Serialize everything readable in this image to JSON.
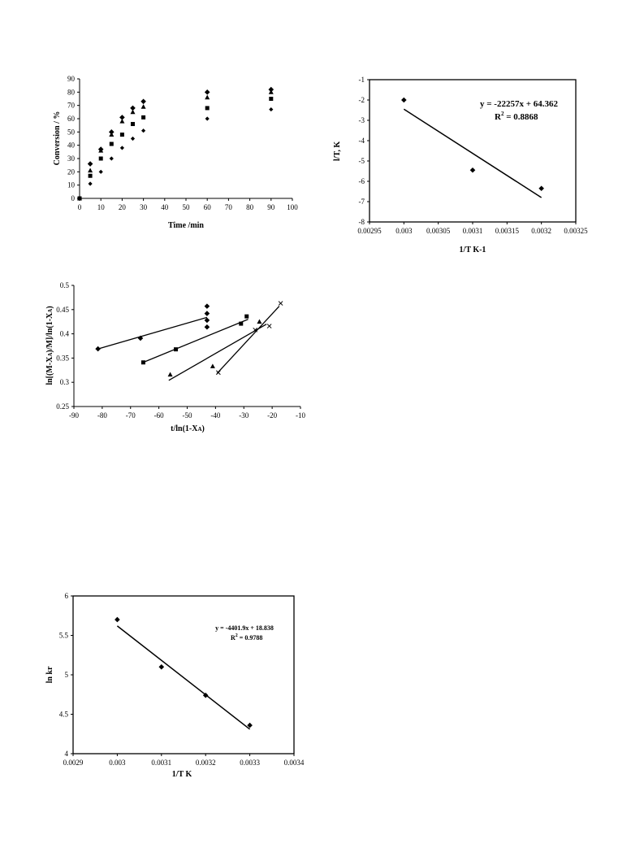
{
  "chart_data": [
    {
      "type": "scatter",
      "xlabel": "Time /min",
      "ylabel": "Conversion / %",
      "xlim": [
        0,
        100
      ],
      "ylim": [
        0,
        90
      ],
      "x_ticks": [
        "0",
        "10",
        "20",
        "30",
        "40",
        "50",
        "60",
        "70",
        "80",
        "90",
        "100"
      ],
      "y_ticks": [
        "0",
        "10",
        "20",
        "30",
        "40",
        "50",
        "60",
        "70",
        "80",
        "90"
      ],
      "grid": false,
      "series": [
        {
          "marker": "diamond-small",
          "x": [
            0,
            5,
            10,
            15,
            20,
            25,
            30,
            60,
            90
          ],
          "y": [
            0,
            11,
            20,
            30,
            38,
            45,
            51,
            60,
            67
          ]
        },
        {
          "marker": "square",
          "x": [
            0,
            5,
            10,
            15,
            20,
            25,
            30,
            60,
            90
          ],
          "y": [
            0,
            17,
            30,
            41,
            48,
            56,
            61,
            68,
            75
          ]
        },
        {
          "marker": "triangle",
          "x": [
            0,
            5,
            10,
            15,
            20,
            25,
            30,
            60,
            90
          ],
          "y": [
            0,
            21,
            36,
            48,
            58,
            65,
            69,
            76,
            80
          ]
        },
        {
          "marker": "diamond",
          "x": [
            0,
            5,
            10,
            15,
            20,
            25,
            30,
            60,
            90
          ],
          "y": [
            0,
            26,
            37,
            50,
            61,
            68,
            73,
            80,
            82
          ]
        }
      ]
    },
    {
      "type": "scatter",
      "xlabel": "1/T K-1",
      "ylabel": "l/T, K",
      "xlim": [
        0.00295,
        0.00325
      ],
      "ylim": [
        -8,
        -1
      ],
      "x_ticks": [
        "0.00295",
        "0.003",
        "0.00305",
        "0.0031",
        "0.00315",
        "0.0032",
        "0.00325"
      ],
      "y_ticks": [
        "-1",
        "-2",
        "-3",
        "-4",
        "-5",
        "-6",
        "-7",
        "-8"
      ],
      "grid": false,
      "series": [
        {
          "marker": "diamond",
          "x": [
            0.003,
            0.0031,
            0.0032
          ],
          "y": [
            -2.0,
            -5.45,
            -6.35
          ]
        }
      ],
      "trendline": {
        "x": [
          0.003,
          0.0032
        ],
        "y": [
          -2.45,
          -6.8
        ]
      },
      "equation": "y = -22257x + 64.362",
      "r2_label": "R",
      "r2_value": " = 0.8868"
    },
    {
      "type": "scatter",
      "xlabel": "t/ln(1-X",
      "xlabel_sub": "A",
      "xlabel_end": ")",
      "ylabel": "ln[(M-X",
      "ylabel_sub1": "A",
      "ylabel_mid": ")/M]/ln(1-X",
      "ylabel_sub2": "A",
      "ylabel_end": ")",
      "xlim": [
        -90,
        -10
      ],
      "ylim": [
        0.25,
        0.5
      ],
      "x_ticks": [
        "-90",
        "-80",
        "-70",
        "-60",
        "-50",
        "-40",
        "-30",
        "-20",
        "-10"
      ],
      "y_ticks": [
        "0.25",
        "0.3",
        "0.35",
        "0.4",
        "0.45",
        "0.5"
      ],
      "grid": false,
      "series": [
        {
          "marker": "diamond",
          "x": [
            -81.5,
            -66.5,
            -43,
            -43,
            -43,
            -43
          ],
          "y": [
            0.369,
            0.391,
            0.414,
            0.428,
            0.442,
            0.457
          ],
          "trendline": {
            "x": [
              -82,
              -43
            ],
            "y": [
              0.368,
              0.434
            ]
          }
        },
        {
          "marker": "square",
          "x": [
            -65.5,
            -54,
            -31,
            -29
          ],
          "y": [
            0.341,
            0.368,
            0.421,
            0.436
          ],
          "trendline": {
            "x": [
              -66,
              -28.5
            ],
            "y": [
              0.34,
              0.43
            ]
          }
        },
        {
          "marker": "triangle",
          "x": [
            -56,
            -41,
            -24.5
          ],
          "y": [
            0.316,
            0.333,
            0.425
          ],
          "trendline": {
            "x": [
              -56.5,
              -22
            ],
            "y": [
              0.304,
              0.42
            ]
          }
        },
        {
          "marker": "cross",
          "x": [
            -39,
            -26,
            -21,
            -17
          ],
          "y": [
            0.32,
            0.408,
            0.416,
            0.463
          ],
          "trendline": {
            "x": [
              -39.5,
              -17.5
            ],
            "y": [
              0.318,
              0.457
            ]
          }
        }
      ]
    },
    {
      "type": "scatter",
      "xlabel": "1/T K",
      "ylabel": "ln kr",
      "xlim": [
        0.0029,
        0.0034
      ],
      "ylim": [
        4,
        6
      ],
      "x_ticks": [
        "0.0029",
        "0.003",
        "0.0031",
        "0.0032",
        "0.0033",
        "0.0034"
      ],
      "y_ticks": [
        "4",
        "4.5",
        "5",
        "5.5",
        "6"
      ],
      "grid": false,
      "series": [
        {
          "marker": "diamond",
          "x": [
            0.003,
            0.0031,
            0.0032,
            0.0033
          ],
          "y": [
            5.7,
            5.1,
            4.74,
            4.36
          ]
        }
      ],
      "trendline": {
        "x": [
          0.003,
          0.0033
        ],
        "y": [
          5.62,
          4.31
        ]
      },
      "equation": "y = -4401.9x + 18.838",
      "r2_label": "R",
      "r2_value": " = 0.9788"
    }
  ]
}
